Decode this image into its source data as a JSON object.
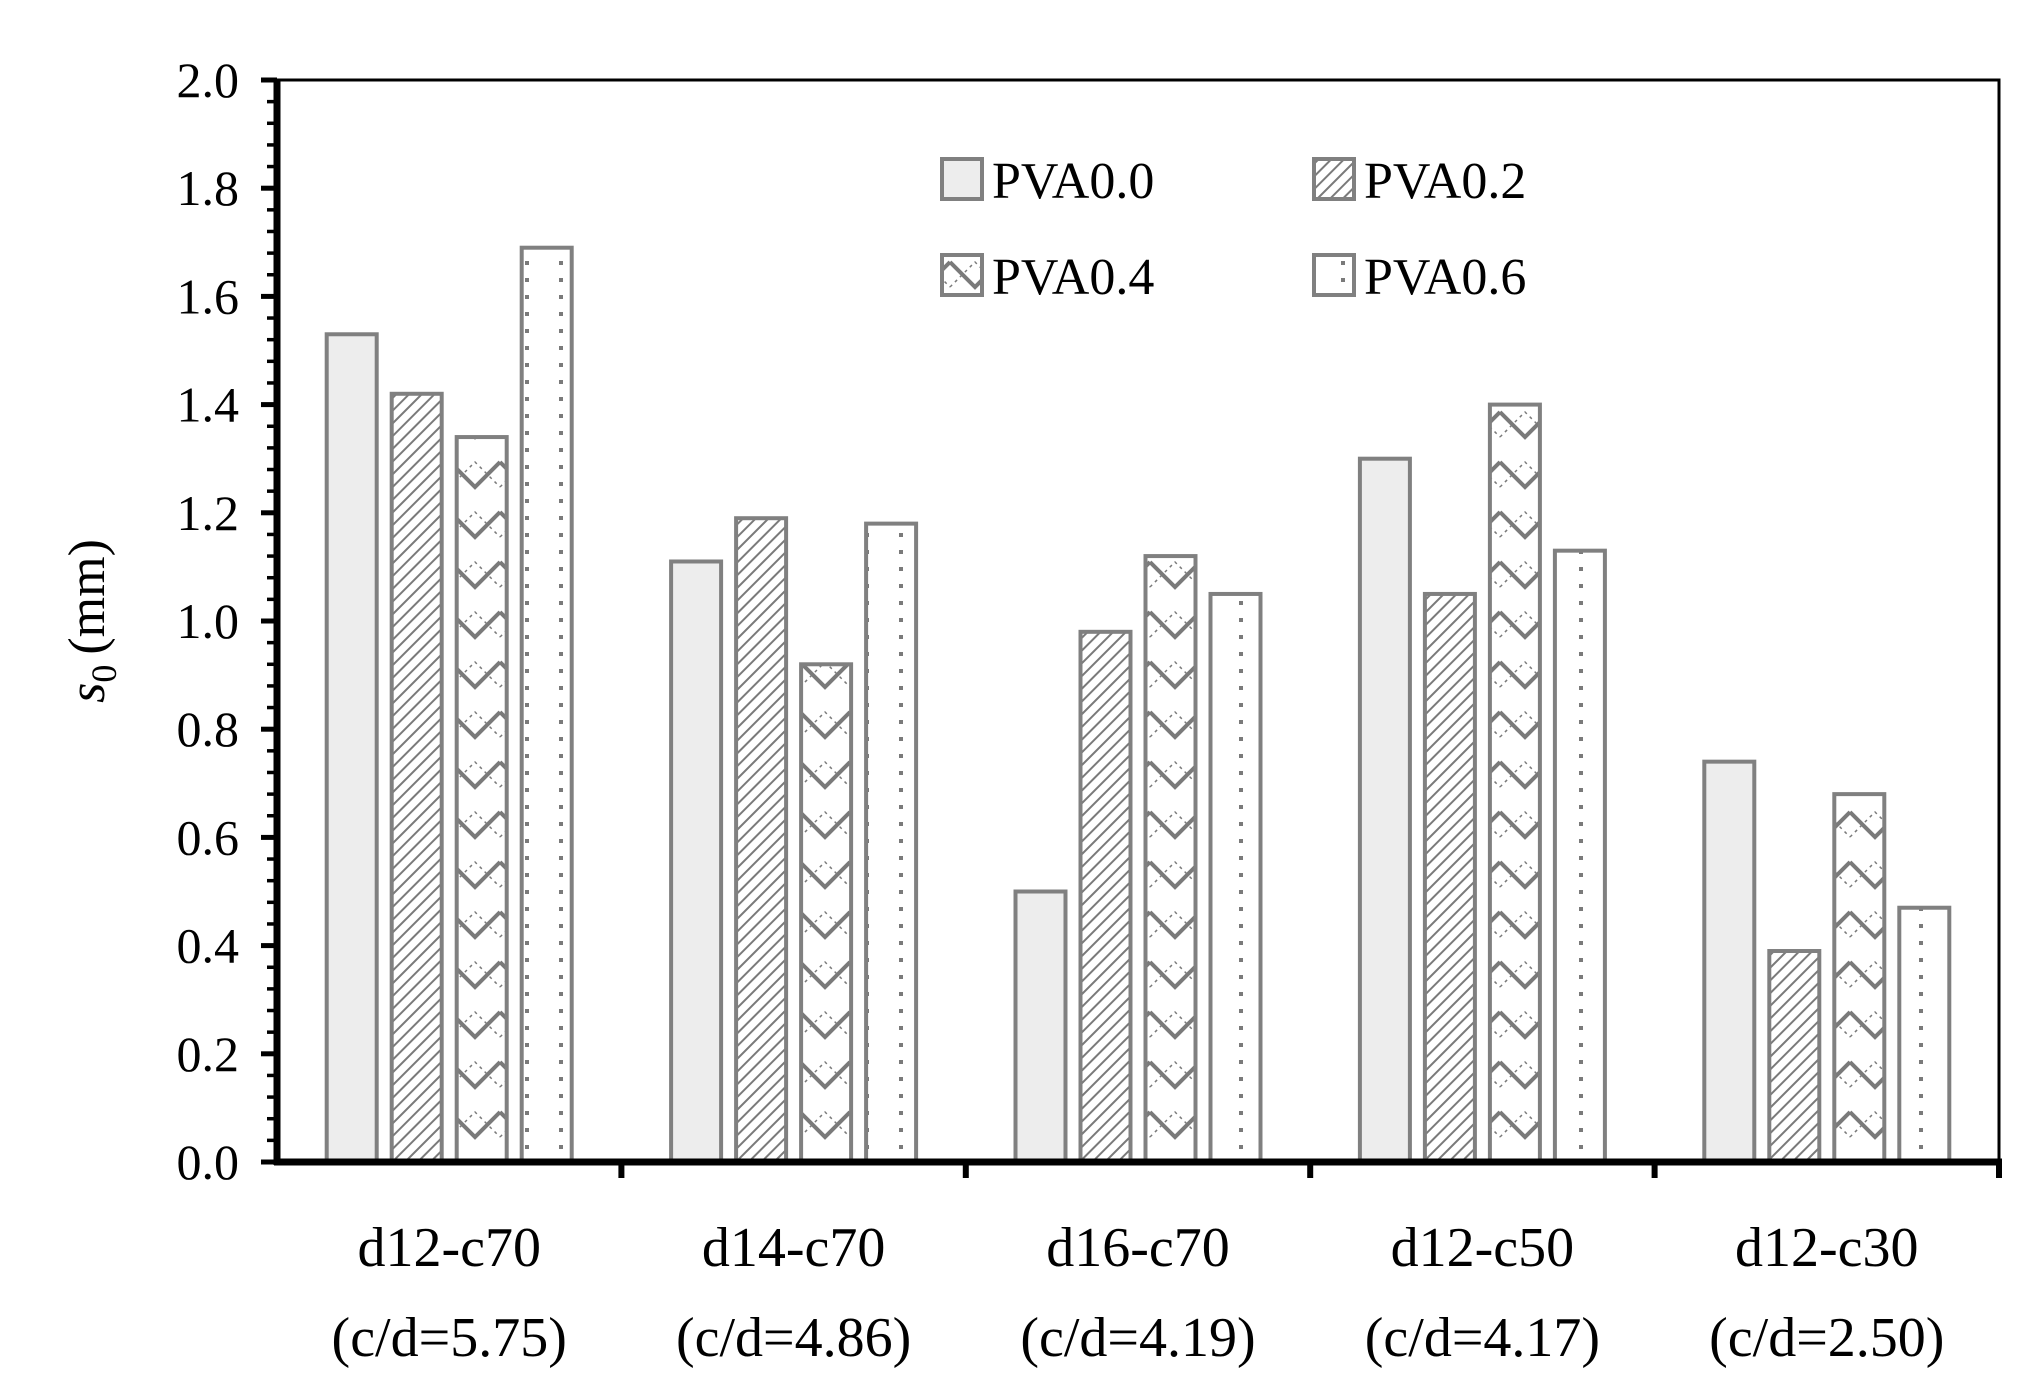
{
  "chart_data": {
    "type": "bar",
    "title": "",
    "xlabel": "",
    "ylabel": {
      "symbol": "s",
      "subscript": "0",
      "unit": "(mm)"
    },
    "ylim": [
      0,
      2.0
    ],
    "ytick_step": 0.2,
    "yticks": [
      "0.0",
      "0.2",
      "0.4",
      "0.6",
      "0.8",
      "1.0",
      "1.2",
      "1.4",
      "1.6",
      "1.8",
      "2.0"
    ],
    "categories": [
      {
        "name": "d12-c70",
        "ratio": "(c/d=5.75)"
      },
      {
        "name": "d14-c70",
        "ratio": "(c/d=4.86)"
      },
      {
        "name": "d16-c70",
        "ratio": "(c/d=4.19)"
      },
      {
        "name": "d12-c50",
        "ratio": "(c/d=4.17)"
      },
      {
        "name": "d12-c30",
        "ratio": "(c/d=2.50)"
      }
    ],
    "series": [
      {
        "name": "PVA0.0",
        "pattern": "solid",
        "values": [
          1.53,
          1.11,
          0.5,
          1.3,
          0.74
        ]
      },
      {
        "name": "PVA0.2",
        "pattern": "diagonal",
        "values": [
          1.42,
          1.19,
          0.98,
          1.05,
          0.39
        ]
      },
      {
        "name": "PVA0.4",
        "pattern": "zigzag",
        "values": [
          1.34,
          0.92,
          1.12,
          1.4,
          0.68
        ]
      },
      {
        "name": "PVA0.6",
        "pattern": "dots",
        "values": [
          1.69,
          1.18,
          1.05,
          1.13,
          0.47
        ]
      }
    ],
    "legend_position": "top-right",
    "grid": false,
    "colors": {
      "bar_stroke": "#808080",
      "solid_fill": "#ededed",
      "pattern": "#7a7a7a",
      "axis": "#000000"
    }
  }
}
